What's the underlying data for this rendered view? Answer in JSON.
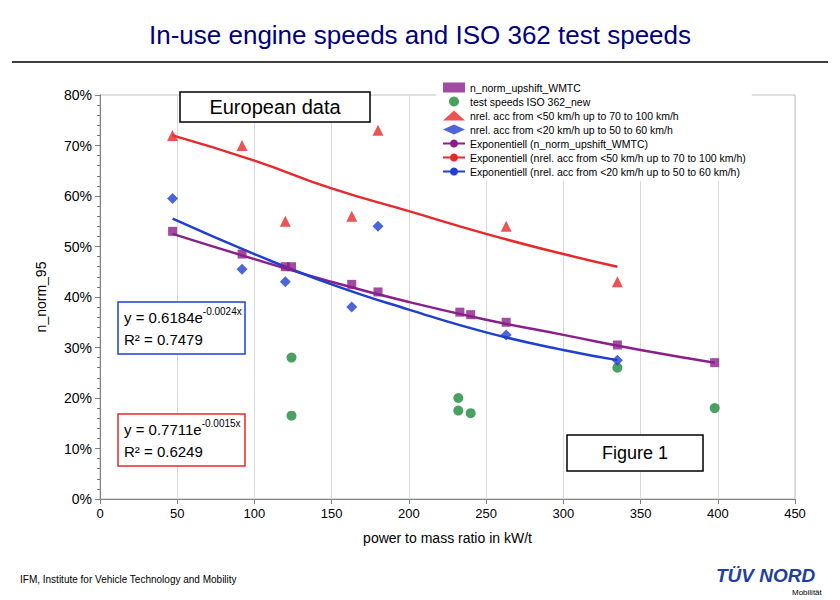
{
  "title": "In-use engine speeds and ISO 362 test speeds",
  "footer": "IFM, Institute for Vehicle Technology and Mobility",
  "logo": "TÜV NORD",
  "logo_sub": "Mobilität",
  "chart_data": {
    "type": "scatter",
    "x_label": "power to mass ratio in kW/t",
    "y_label": "n_norm_95",
    "xlim": [
      0,
      450
    ],
    "xticks": [
      0,
      50,
      100,
      150,
      200,
      250,
      300,
      350,
      400,
      450
    ],
    "ylim": [
      0,
      80
    ],
    "yticks": [
      {
        "value": 0,
        "label": "0%"
      },
      {
        "value": 10,
        "label": "10%"
      },
      {
        "value": 20,
        "label": "20%"
      },
      {
        "value": 30,
        "label": "30%"
      },
      {
        "value": 40,
        "label": "40%"
      },
      {
        "value": 50,
        "label": "50%"
      },
      {
        "value": 60,
        "label": "60%"
      },
      {
        "value": 70,
        "label": "70%"
      },
      {
        "value": 80,
        "label": "80%"
      }
    ],
    "grid": true,
    "legend": "top-right",
    "annotations": [
      "European data",
      "Figure 1"
    ],
    "equations": [
      {
        "base": "y = 0.6184e",
        "exponent": "-0.0024x",
        "r2": "R² = 0.7479",
        "color": "#1f3fd0"
      },
      {
        "base": "y = 0.7711e",
        "exponent": "-0.0015x",
        "r2": "R² = 0.6249",
        "color": "#e8282a"
      }
    ],
    "series": [
      {
        "name": "n_norm_upshift_WMTC",
        "type": "scatter",
        "marker": "square",
        "color": "#8a1f8a",
        "x": [
          47,
          92,
          120,
          124,
          163,
          180,
          233,
          240,
          263,
          335,
          398
        ],
        "values": [
          53,
          48.5,
          46,
          46,
          42.5,
          41,
          37,
          36.5,
          35,
          30.5,
          27
        ]
      },
      {
        "name": "test speeds ISO 362_new",
        "type": "scatter",
        "marker": "circle",
        "color": "#1a8a3a",
        "x": [
          124,
          124,
          232,
          232,
          240,
          335,
          398
        ],
        "values": [
          28,
          16.5,
          20,
          17.5,
          17,
          26,
          18
        ]
      },
      {
        "name": "nrel. acc from <50 km/h up to 70 to 100 km/h",
        "type": "scatter",
        "marker": "triangle",
        "color": "#e8282a",
        "x": [
          47,
          92,
          120,
          163,
          180,
          263,
          335
        ],
        "values": [
          72,
          70,
          55,
          56,
          73,
          54,
          43
        ]
      },
      {
        "name": "nrel. acc from <20 km/h up to 50 to 60 km/h",
        "type": "scatter",
        "marker": "diamond",
        "color": "#1f3fd0",
        "x": [
          47,
          92,
          120,
          163,
          180,
          263,
          335
        ],
        "values": [
          59.5,
          45.5,
          43,
          38,
          54,
          32.5,
          27.5
        ]
      },
      {
        "name": "Exponentiell (n_norm_upshift_WMTC)",
        "type": "line",
        "marker": "none",
        "color": "#8a1f8a",
        "x": [
          47,
          100,
          150,
          200,
          250,
          300,
          350,
          398
        ],
        "values": [
          52.5,
          47.5,
          43,
          39,
          35.5,
          32.5,
          29.5,
          27
        ]
      },
      {
        "name": "Exponentiell (nrel. acc from <50 km/h up to 70 to 100 km/h)",
        "type": "line",
        "marker": "none",
        "color": "#e8282a",
        "x": [
          47,
          100,
          150,
          200,
          250,
          300,
          335
        ],
        "values": [
          72,
          67,
          61.5,
          57,
          52.5,
          48.5,
          46
        ]
      },
      {
        "name": "Exponentiell (nrel. acc from <20 km/h up to 50 to 60 km/h)",
        "type": "line",
        "marker": "none",
        "color": "#1f3fd0",
        "x": [
          47,
          100,
          150,
          200,
          250,
          300,
          335
        ],
        "values": [
          55.5,
          48.5,
          42.5,
          37.5,
          33,
          29.5,
          27.5
        ]
      }
    ]
  }
}
